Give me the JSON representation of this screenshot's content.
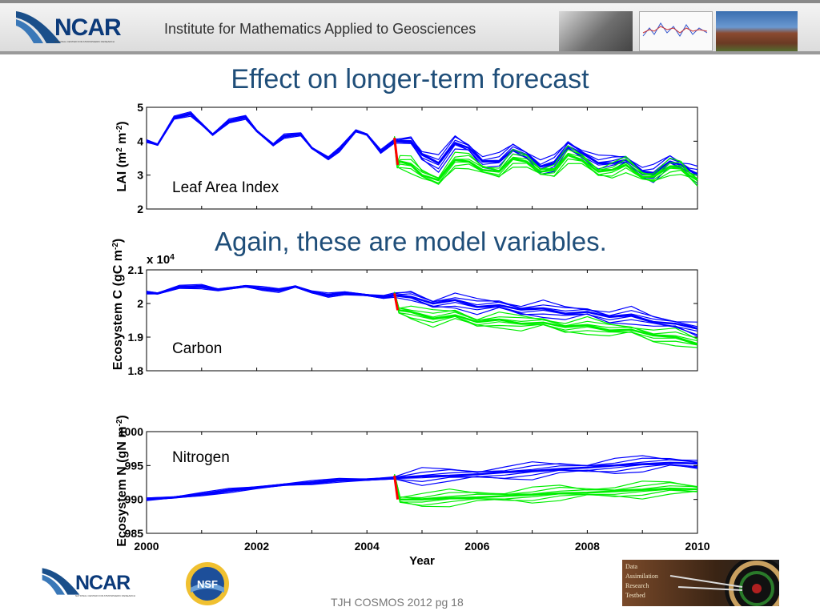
{
  "header": {
    "logo_text": "NCAR",
    "logo_subtext": "NATIONAL CENTER FOR ATMOSPHERIC RESEARCH",
    "title": "Institute for Mathematics Applied to Geosciences"
  },
  "slide": {
    "title": "Effect on longer-term forecast",
    "subtitle": "Again, these are model variables."
  },
  "footer": {
    "ncar_logo_text": "NCAR",
    "ncar_logo_subtext": "NATIONAL CENTER FOR ATMOSPHERIC RESEARCH",
    "nsf_logo_text": "NSF",
    "dart_logo_lines": [
      "Data",
      "Assimilation",
      "Research",
      "Testbed"
    ],
    "caption": "TJH COSMOS 2012 pg 18"
  },
  "colors": {
    "before_forecast": "#0000ff",
    "assimilation": "#ff0000",
    "forecast_branch": "#00ee00",
    "title_blue": "#1f4e79"
  },
  "chart_data": [
    {
      "type": "line",
      "annotation": "Leaf Area Index",
      "ylabel": "LAI (m^2 m^-2)",
      "ylim": [
        2,
        5
      ],
      "yticks": [
        "2",
        "3",
        "4",
        "5"
      ],
      "xlim": [
        2000,
        2010
      ],
      "x_tick_labels_shown": false,
      "series": [
        {
          "x": [
            2000.0,
            2000.2,
            2000.5,
            2000.8,
            2001.0,
            2001.2,
            2001.5,
            2001.8,
            2002.0,
            2002.3,
            2002.5,
            2002.8,
            2003.0,
            2003.3,
            2003.5,
            2003.8,
            2004.0,
            2004.25,
            2004.5,
            2004.8,
            2005.0,
            2005.3,
            2005.6,
            2005.85,
            2006.1,
            2006.4,
            2006.65,
            2006.9,
            2007.15,
            2007.4,
            2007.65,
            2007.9,
            2008.2,
            2008.45,
            2008.7,
            2009.0,
            2009.2,
            2009.5,
            2009.7,
            2009.85,
            2010.0
          ],
          "y": [
            4.0,
            3.9,
            4.7,
            4.8,
            4.5,
            4.2,
            4.6,
            4.7,
            4.3,
            3.9,
            4.15,
            4.2,
            3.8,
            3.5,
            3.75,
            4.3,
            4.2,
            3.7,
            4.0,
            4.0,
            3.6,
            3.35,
            3.95,
            3.8,
            3.4,
            3.4,
            3.75,
            3.6,
            3.25,
            3.35,
            3.85,
            3.65,
            3.35,
            3.35,
            3.45,
            3.1,
            3.05,
            3.4,
            3.3,
            3.15,
            3.0
          ]
        },
        {
          "x": [
            2004.5,
            2004.55,
            2004.6,
            2004.8,
            2005.0,
            2005.3,
            2005.6,
            2005.85,
            2006.1,
            2006.4,
            2006.65,
            2006.9,
            2007.15,
            2007.4,
            2007.65,
            2007.9,
            2008.2,
            2008.45,
            2008.7,
            2009.0,
            2009.2,
            2009.5,
            2009.7,
            2009.85,
            2010.0
          ],
          "y": [
            4.1,
            3.3,
            3.4,
            3.3,
            3.0,
            2.85,
            3.45,
            3.4,
            3.15,
            3.1,
            3.5,
            3.4,
            3.1,
            3.15,
            3.6,
            3.45,
            3.1,
            3.15,
            3.3,
            2.95,
            2.95,
            3.25,
            3.2,
            3.0,
            2.85
          ]
        }
      ]
    },
    {
      "type": "line",
      "annotation": "Carbon",
      "ylabel": "Ecosystem C (gC m^-2)",
      "scale_label": "x 10^4",
      "ylim": [
        1.8,
        2.1
      ],
      "yticks": [
        "1.8",
        "1.9",
        "2",
        "2.1"
      ],
      "xlim": [
        2000,
        2010
      ],
      "x_tick_labels_shown": false,
      "series": [
        {
          "x": [
            2000.0,
            2000.2,
            2000.6,
            2001.0,
            2001.3,
            2001.8,
            2002.1,
            2002.4,
            2002.7,
            2003.0,
            2003.3,
            2003.6,
            2004.0,
            2004.3,
            2004.5,
            2004.8,
            2005.2,
            2005.6,
            2006.0,
            2006.4,
            2006.8,
            2007.2,
            2007.6,
            2008.0,
            2008.4,
            2008.8,
            2009.2,
            2009.6,
            2010.0
          ],
          "y": [
            2.032,
            2.03,
            2.05,
            2.05,
            2.04,
            2.052,
            2.045,
            2.038,
            2.05,
            2.035,
            2.025,
            2.03,
            2.025,
            2.02,
            2.025,
            2.02,
            2.0,
            2.01,
            1.99,
            1.995,
            1.982,
            1.985,
            1.97,
            1.975,
            1.96,
            1.965,
            1.945,
            1.94,
            1.925
          ]
        },
        {
          "x": [
            2004.5,
            2004.58,
            2004.8,
            2005.2,
            2005.6,
            2006.0,
            2006.4,
            2006.8,
            2007.2,
            2007.6,
            2008.0,
            2008.4,
            2008.8,
            2009.2,
            2009.6,
            2010.0
          ],
          "y": [
            2.03,
            1.98,
            1.975,
            1.955,
            1.965,
            1.945,
            1.952,
            1.94,
            1.943,
            1.93,
            1.935,
            1.92,
            1.922,
            1.905,
            1.9,
            1.88
          ]
        }
      ]
    },
    {
      "type": "line",
      "annotation": "Nitrogen",
      "xlabel": "Year",
      "ylabel": "Ecosystem N (gN m^-2)",
      "ylim": [
        985,
        1000
      ],
      "yticks": [
        "985",
        "990",
        "995",
        "1000"
      ],
      "xlim": [
        2000,
        2010
      ],
      "xticks": [
        "2000",
        "2002",
        "2004",
        "2006",
        "2008",
        "2010"
      ],
      "series": [
        {
          "x": [
            2000.0,
            2000.5,
            2001.0,
            2001.5,
            2002.0,
            2002.5,
            2003.0,
            2003.5,
            2004.0,
            2004.5,
            2005.0,
            2005.5,
            2006.0,
            2006.5,
            2007.0,
            2007.5,
            2008.0,
            2008.5,
            2009.0,
            2009.5,
            2010.0
          ],
          "y": [
            990.0,
            990.3,
            990.8,
            991.3,
            991.7,
            992.2,
            992.5,
            992.8,
            992.9,
            993.2,
            993.4,
            993.5,
            993.7,
            994.0,
            994.2,
            994.5,
            994.7,
            995.0,
            995.2,
            995.4,
            995.3
          ]
        },
        {
          "x": [
            2004.5,
            2004.6,
            2005.0,
            2005.5,
            2006.0,
            2006.5,
            2007.0,
            2007.5,
            2008.0,
            2008.5,
            2009.0,
            2009.5,
            2010.0
          ],
          "y": [
            993.5,
            990.0,
            990.0,
            990.2,
            990.3,
            990.5,
            990.7,
            990.9,
            991.0,
            991.2,
            991.4,
            991.6,
            991.5
          ]
        }
      ]
    }
  ]
}
